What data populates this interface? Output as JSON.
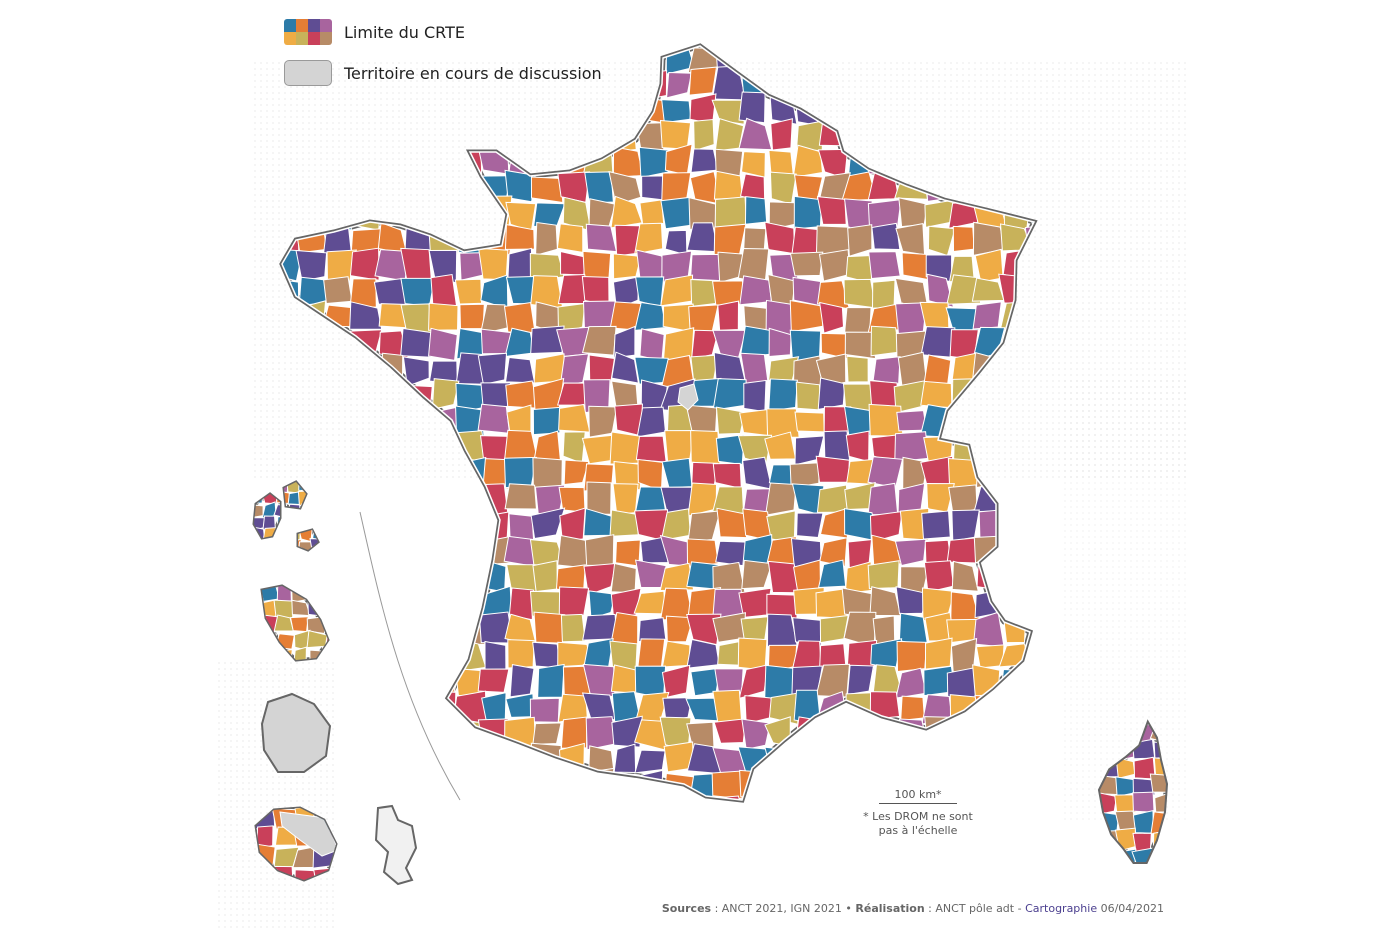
{
  "legend": {
    "crte_label": "Limite du CRTE",
    "pending_label": "Territoire en cours de discussion",
    "crte_swatch_colors": [
      "#2d7ba8",
      "#e57e35",
      "#5f4d93",
      "#a8649e",
      "#efac45",
      "#c8b25a",
      "#c9405a",
      "#b78b67"
    ],
    "pending_color": "#d4d4d4"
  },
  "palette": [
    "#2d7ba8",
    "#e57e35",
    "#5f4d93",
    "#a8649e",
    "#efac45",
    "#c8b25a",
    "#c9405a",
    "#b78b67"
  ],
  "scale": {
    "label": "100 km*",
    "note_line1": "* Les DROM ne sont",
    "note_line2": "pas à l'échelle"
  },
  "sources": {
    "prefix": "Sources",
    "sources_text": " : ANCT 2021, IGN 2021 • ",
    "realisation_label": "Réalisation",
    "realisation_text": " : ANCT pôle adt - ",
    "cartographie_label": "Cartographie",
    "date": " 06/04/2021"
  }
}
